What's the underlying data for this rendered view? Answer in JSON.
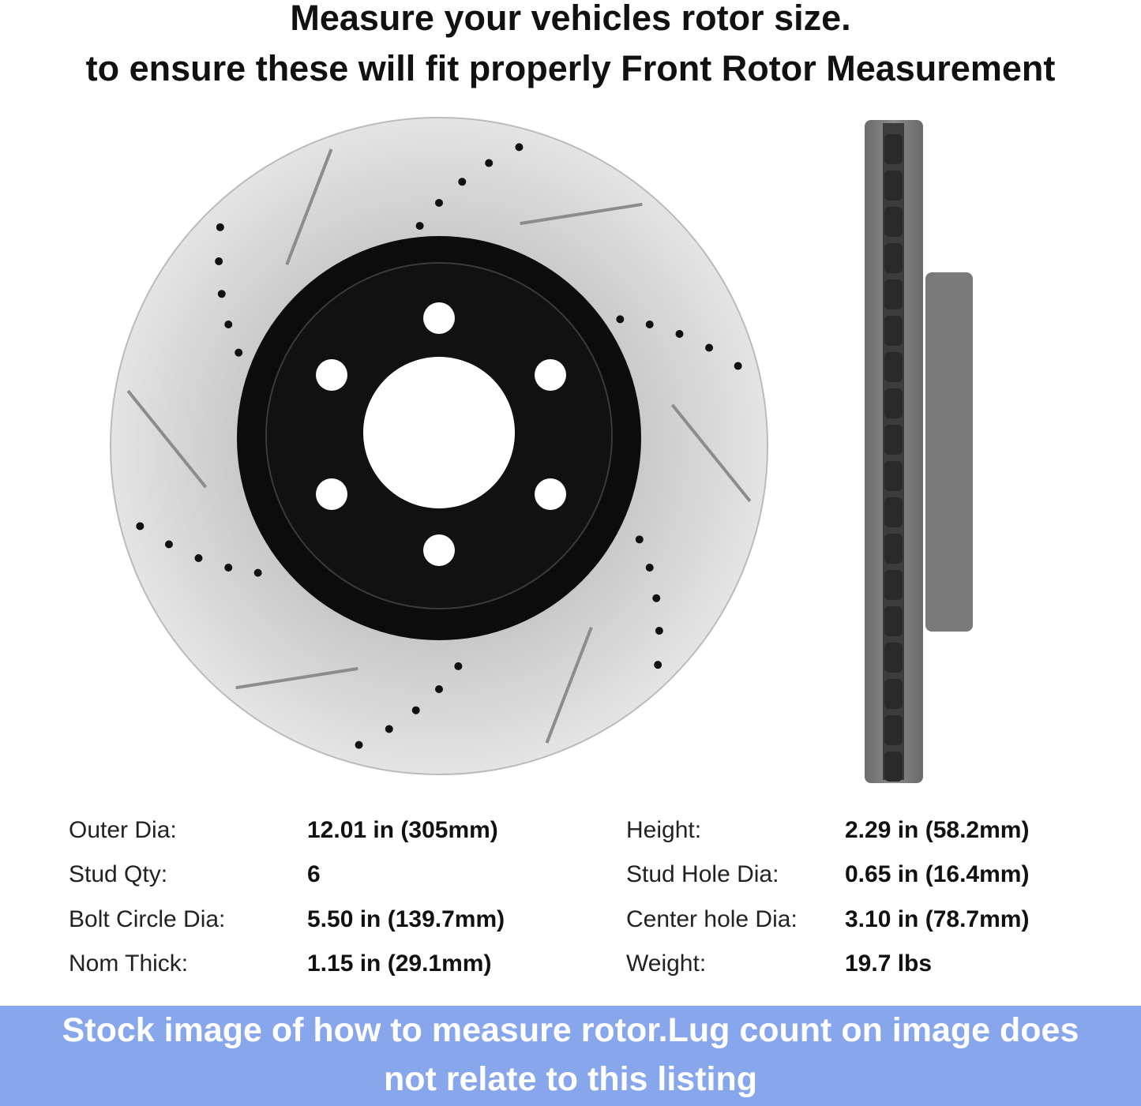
{
  "title": {
    "line1": "Measure your vehicles rotor size.",
    "line2": "to ensure these will fit properly Front Rotor Measurement"
  },
  "images": {
    "front_view": "drilled-slotted-brake-rotor-front-view",
    "side_view": "brake-rotor-side-profile"
  },
  "specs": [
    {
      "label": "Outer Dia:",
      "value": "12.01 in (305mm)"
    },
    {
      "label": "Stud Qty:",
      "value": "6"
    },
    {
      "label": "Bolt Circle Dia:",
      "value": "5.50 in (139.7mm)"
    },
    {
      "label": "Nom Thick:",
      "value": "1.15 in (29.1mm)"
    },
    {
      "label": "Height:",
      "value": "2.29 in (58.2mm)"
    },
    {
      "label": "Stud Hole Dia:",
      "value": "0.65 in (16.4mm)"
    },
    {
      "label": "Center hole Dia:",
      "value": "3.10 in (78.7mm)"
    },
    {
      "label": "Weight:",
      "value": "19.7 lbs"
    }
  ],
  "banner": {
    "line1": "Stock image of how to measure rotor.Lug count on image does",
    "line2": "not relate to this listing",
    "color": "#87a6ec"
  }
}
